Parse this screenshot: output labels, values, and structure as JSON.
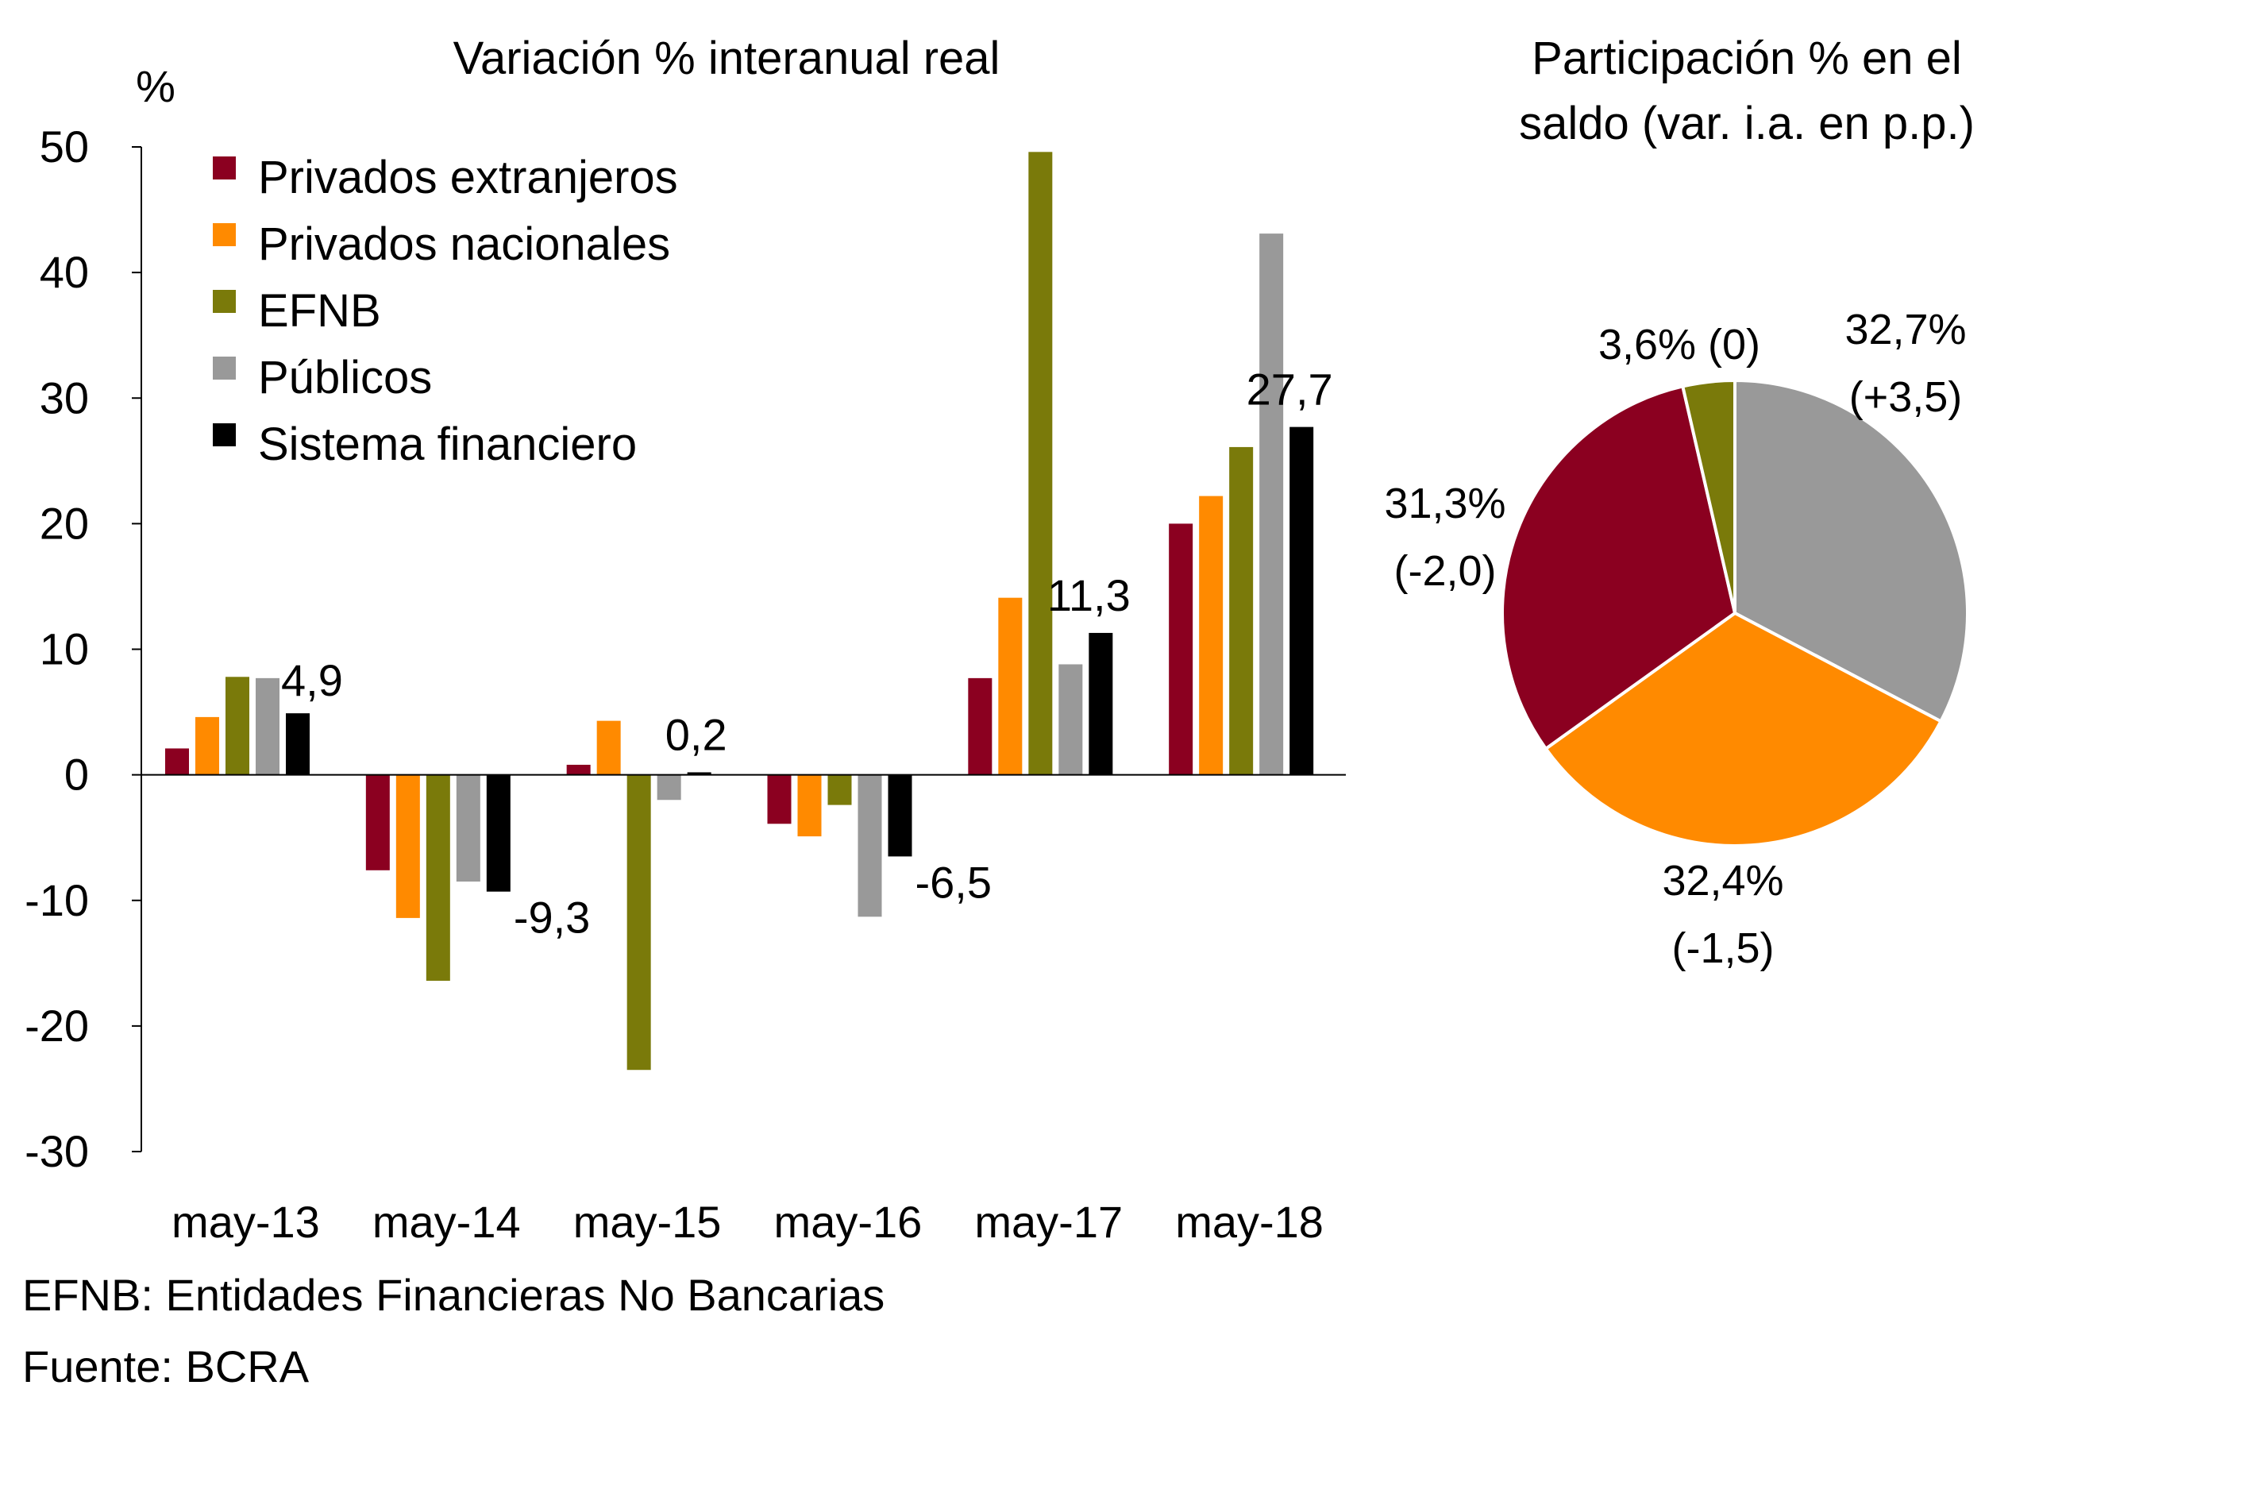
{
  "chart_data": [
    {
      "type": "bar",
      "title": "Variación % interanual real",
      "ylabel": "%",
      "xlabel": "",
      "ylim": [
        -30,
        50
      ],
      "yticks": [
        50,
        40,
        30,
        20,
        10,
        0,
        -10,
        -20,
        -30
      ],
      "ytick_labels": [
        "50",
        "40",
        "30",
        "20",
        "10",
        "0",
        "-10",
        "-20",
        "-30"
      ],
      "categories": [
        "may-13",
        "may-14",
        "may-15",
        "may-16",
        "may-17",
        "may-18"
      ],
      "legend_position": "top-left",
      "series": [
        {
          "name": "Privados extranjeros",
          "color": "#8B0020",
          "values": [
            2.1,
            -7.6,
            0.8,
            -3.9,
            7.7,
            20.0
          ]
        },
        {
          "name": "Privados nacionales",
          "color": "#FF8A00",
          "values": [
            4.6,
            -11.4,
            4.3,
            -4.9,
            14.1,
            22.2
          ]
        },
        {
          "name": "EFNB",
          "color": "#7A7A0A",
          "values": [
            7.8,
            -16.4,
            -23.5,
            -2.4,
            49.6,
            26.1
          ]
        },
        {
          "name": "Públicos",
          "color": "#999999",
          "values": [
            7.7,
            -8.5,
            -2.0,
            -11.3,
            8.8,
            43.1
          ]
        },
        {
          "name": "Sistema financiero",
          "color": "#000000",
          "values": [
            4.9,
            -9.3,
            0.2,
            -6.5,
            11.3,
            27.7
          ]
        }
      ],
      "data_labels": [
        "4,9",
        "-9,3",
        "0,2",
        "-6,5",
        "11,3",
        "27,7"
      ]
    },
    {
      "type": "pie",
      "title_lines": [
        "Participación % en el",
        "saldo (var. i.a. en p.p.)"
      ],
      "slices": [
        {
          "name": "Públicos",
          "value": 32.7,
          "change": 3.5,
          "color": "#999999",
          "label_lines": [
            "32,7%",
            "(+3,5)"
          ]
        },
        {
          "name": "Privados nacionales",
          "value": 32.4,
          "change": -1.5,
          "color": "#FF8A00",
          "label_lines": [
            "32,4%",
            "(-1,5)"
          ]
        },
        {
          "name": "Privados extranjeros",
          "value": 31.3,
          "change": -2.0,
          "color": "#8B0020",
          "label_lines": [
            "31,3%",
            "(-2,0)"
          ]
        },
        {
          "name": "EFNB",
          "value": 3.6,
          "change": 0,
          "color": "#7A7A0A",
          "label_lines": [
            "3,6% (0)"
          ]
        }
      ]
    }
  ],
  "footnotes": {
    "efnb": "EFNB: Entidades Financieras No Bancarias",
    "source": "Fuente: BCRA"
  }
}
